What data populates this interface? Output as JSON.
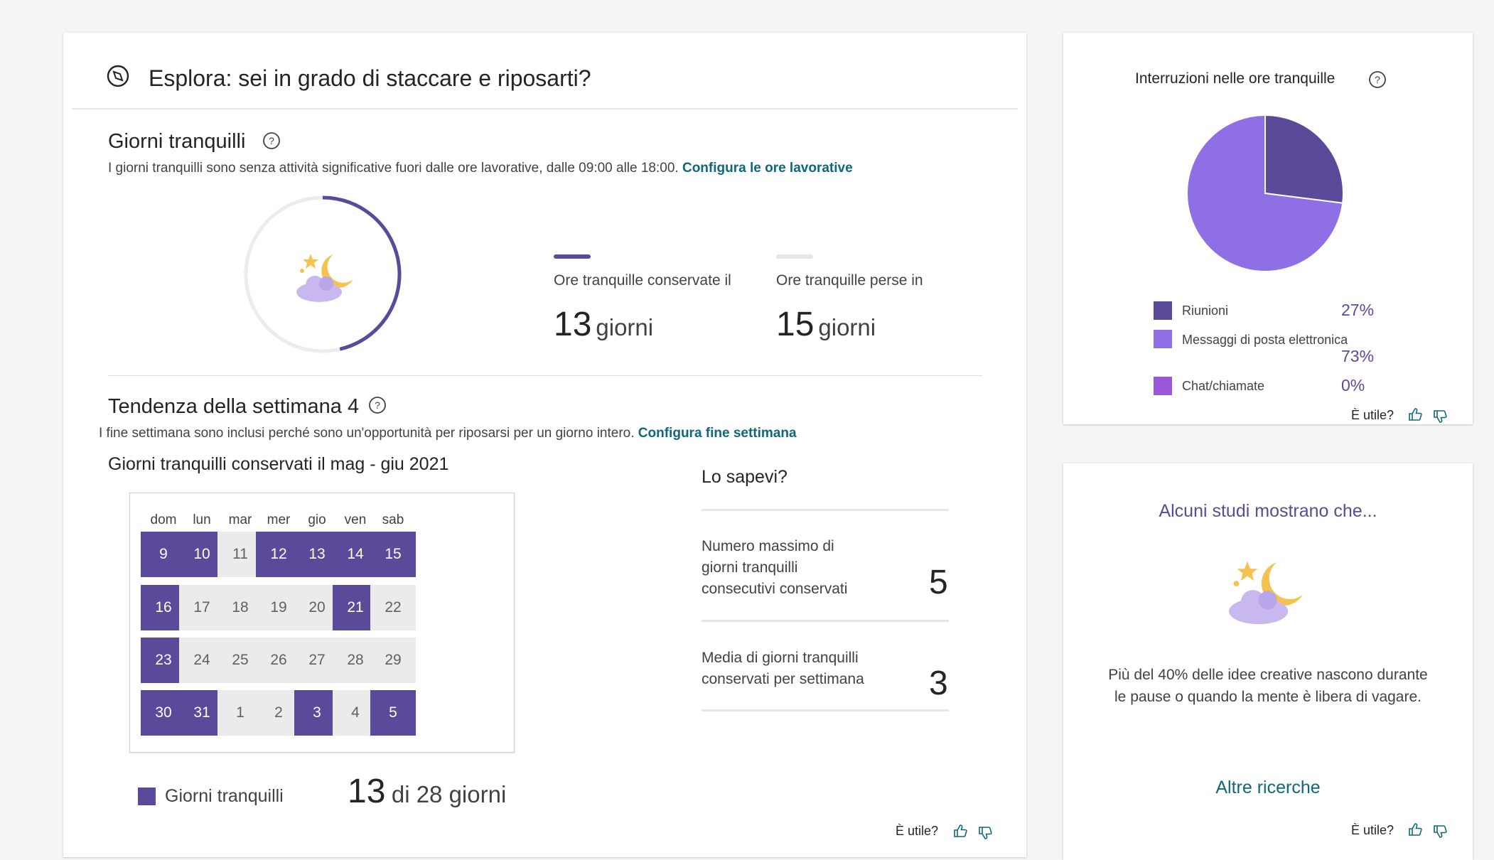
{
  "header": {
    "title": "Esplora: sei in grado di staccare e riposarti?",
    "icon": "compass-icon"
  },
  "quiet_days": {
    "title": "Giorni tranquilli",
    "description": "I giorni tranquilli sono senza attività significative fuori dalle ore lavorative, dalle 09:00 alle 18:00.",
    "link": "Configura le ore lavorative",
    "kept_fraction": 0.464,
    "kept_label": "Ore tranquille conservate il",
    "kept_value": "13",
    "kept_unit": "giorni",
    "lost_label": "Ore tranquille perse in",
    "lost_value": "15",
    "lost_unit": "giorni"
  },
  "trend": {
    "title": "Tendenza della settimana 4",
    "description": "I fine settimana sono inclusi perché sono un'opportunità per riposarsi per un giorno intero.",
    "link": "Configura fine settimana",
    "calendar_title": "Giorni tranquilli conservati il mag - giu 2021",
    "weekdays": [
      "dom",
      "lun",
      "mar",
      "mer",
      "gio",
      "ven",
      "sab"
    ],
    "weeks": [
      [
        {
          "d": "9",
          "q": true
        },
        {
          "d": "10",
          "q": true
        },
        {
          "d": "11",
          "q": false
        },
        {
          "d": "12",
          "q": true
        },
        {
          "d": "13",
          "q": true
        },
        {
          "d": "14",
          "q": true
        },
        {
          "d": "15",
          "q": true
        }
      ],
      [
        {
          "d": "16",
          "q": true
        },
        {
          "d": "17",
          "q": false
        },
        {
          "d": "18",
          "q": false
        },
        {
          "d": "19",
          "q": false
        },
        {
          "d": "20",
          "q": false
        },
        {
          "d": "21",
          "q": true
        },
        {
          "d": "22",
          "q": false
        }
      ],
      [
        {
          "d": "23",
          "q": true
        },
        {
          "d": "24",
          "q": false
        },
        {
          "d": "25",
          "q": false
        },
        {
          "d": "26",
          "q": false
        },
        {
          "d": "27",
          "q": false
        },
        {
          "d": "28",
          "q": false
        },
        {
          "d": "29",
          "q": false
        }
      ],
      [
        {
          "d": "30",
          "q": true
        },
        {
          "d": "31",
          "q": true
        },
        {
          "d": "1",
          "q": false
        },
        {
          "d": "2",
          "q": false
        },
        {
          "d": "3",
          "q": true
        },
        {
          "d": "4",
          "q": false
        },
        {
          "d": "5",
          "q": true
        }
      ]
    ],
    "legend_label": "Giorni tranquilli",
    "summary_value": "13",
    "summary_text": "di 28 giorni"
  },
  "facts": {
    "title": "Lo sapevi?",
    "items": [
      {
        "text": "Numero massimo di giorni tranquilli consecutivi conservati",
        "value": "5"
      },
      {
        "text": "Media di giorni tranquilli conservati per settimana",
        "value": "3"
      }
    ]
  },
  "feedback": {
    "label": "È utile?"
  },
  "interruptions": {
    "title": "Interruzioni nelle ore tranquille",
    "legend": [
      {
        "label": "Riunioni",
        "pct": "27%",
        "color": "#5b4a99"
      },
      {
        "label": "Messaggi di posta elettronica",
        "pct": "73%",
        "color": "#8f6fe6"
      },
      {
        "label": "Chat/chiamate",
        "pct": "0%",
        "color": "#9b57d9"
      }
    ]
  },
  "chart_data": {
    "type": "pie",
    "title": "Interruzioni nelle ore tranquille",
    "categories": [
      "Riunioni",
      "Messaggi di posta elettronica",
      "Chat/chiamate"
    ],
    "values": [
      27,
      73,
      0
    ],
    "colors": [
      "#5b4a99",
      "#8f6fe6",
      "#9b57d9"
    ]
  },
  "studies": {
    "title": "Alcuni studi mostrano che...",
    "text_line1": "Più del 40% delle idee creative nascono durante",
    "text_line2": "le pause o quando la mente è libera di vagare.",
    "link": "Altre ricerche"
  }
}
